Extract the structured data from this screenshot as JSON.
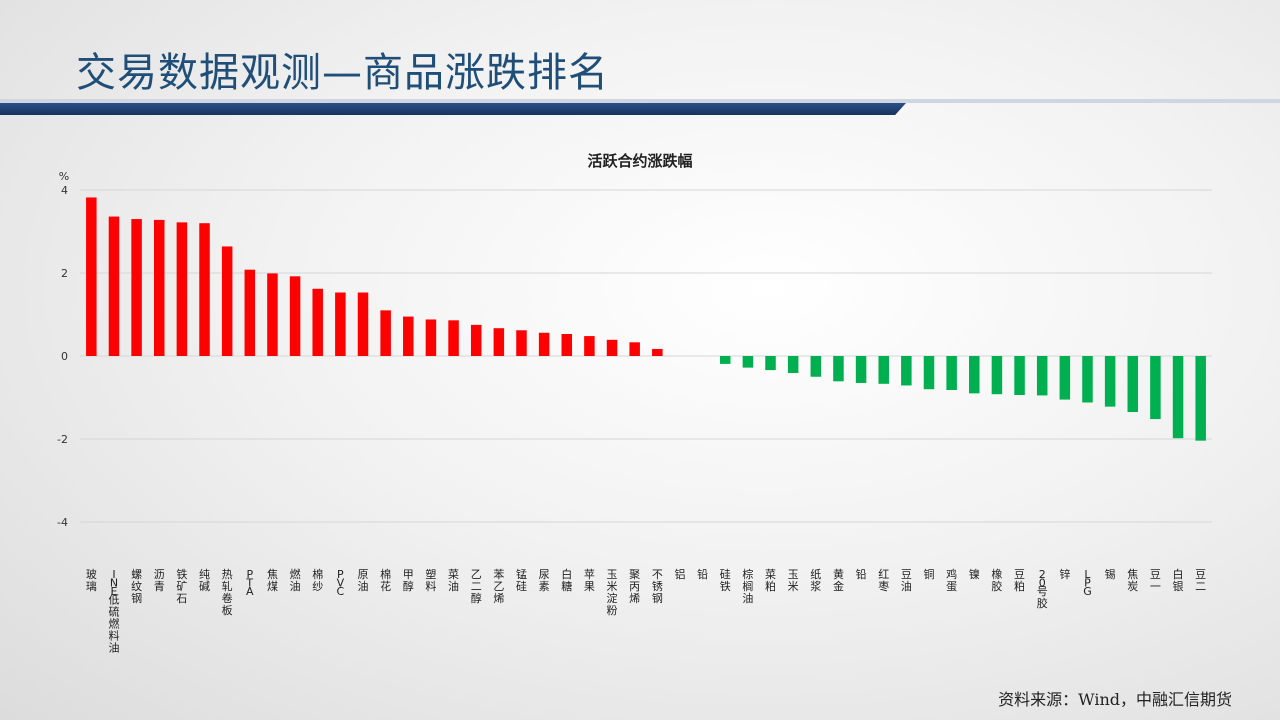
{
  "slide": {
    "title": "交易数据观测—商品涨跌排名",
    "source": "资料来源：Wind，中融汇信期货"
  },
  "colors": {
    "positive": "#ff0000",
    "negative": "#00b050",
    "title": "#1f4e79"
  },
  "chart_data": {
    "type": "bar",
    "title": "活跃合约涨跌幅",
    "ylabel": "%",
    "ylim": [
      -4,
      4
    ],
    "yticks": [
      4,
      2,
      0,
      -2,
      -4
    ],
    "grid": true,
    "categories": [
      "玻璃",
      "INE低硫燃料油",
      "螺纹钢",
      "沥青",
      "铁矿石",
      "纯碱",
      "热轧卷板",
      "PTA",
      "焦煤",
      "燃油",
      "棉纱",
      "PVC",
      "原油",
      "棉花",
      "甲醇",
      "塑料",
      "菜油",
      "乙二醇",
      "苯乙烯",
      "锰硅",
      "尿素",
      "白糖",
      "苹果",
      "玉米淀粉",
      "聚丙烯",
      "不锈钢",
      "铝",
      "铅",
      "硅铁",
      "棕榈油",
      "菜粕",
      "玉米",
      "纸浆",
      "黄金",
      "铅",
      "红枣",
      "豆油",
      "铜",
      "鸡蛋",
      "镍",
      "橡胶",
      "豆粕",
      "20号胶",
      "锌",
      "LPG",
      "锡",
      "焦炭",
      "豆一",
      "白银",
      "豆二"
    ],
    "values": [
      3.82,
      3.36,
      3.3,
      3.28,
      3.22,
      3.2,
      2.64,
      2.08,
      1.99,
      1.92,
      1.62,
      1.53,
      1.53,
      1.1,
      0.95,
      0.88,
      0.86,
      0.75,
      0.67,
      0.62,
      0.56,
      0.53,
      0.48,
      0.39,
      0.33,
      0.17,
      0.0,
      0.0,
      -0.19,
      -0.28,
      -0.34,
      -0.41,
      -0.5,
      -0.61,
      -0.65,
      -0.67,
      -0.71,
      -0.8,
      -0.82,
      -0.9,
      -0.92,
      -0.94,
      -0.95,
      -1.05,
      -1.12,
      -1.22,
      -1.35,
      -1.52,
      -1.98,
      -2.04
    ]
  }
}
